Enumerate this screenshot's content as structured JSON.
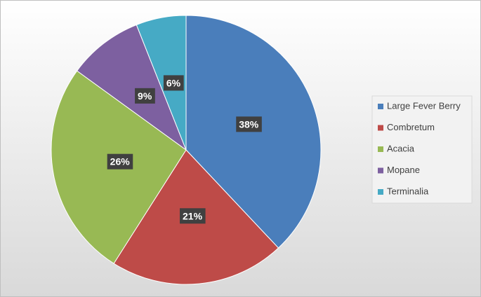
{
  "chart_data": {
    "type": "pie",
    "categories": [
      "Large Fever Berry",
      "Combretum",
      "Acacia",
      "Mopane",
      "Terminalia"
    ],
    "values": [
      38,
      21,
      26,
      9,
      6
    ],
    "value_labels": [
      "38%",
      "21%",
      "26%",
      "9%",
      "6%"
    ],
    "colors": [
      "#4a7ebb",
      "#be4b48",
      "#98b954",
      "#7d60a0",
      "#46aac5"
    ],
    "legend": "right"
  }
}
